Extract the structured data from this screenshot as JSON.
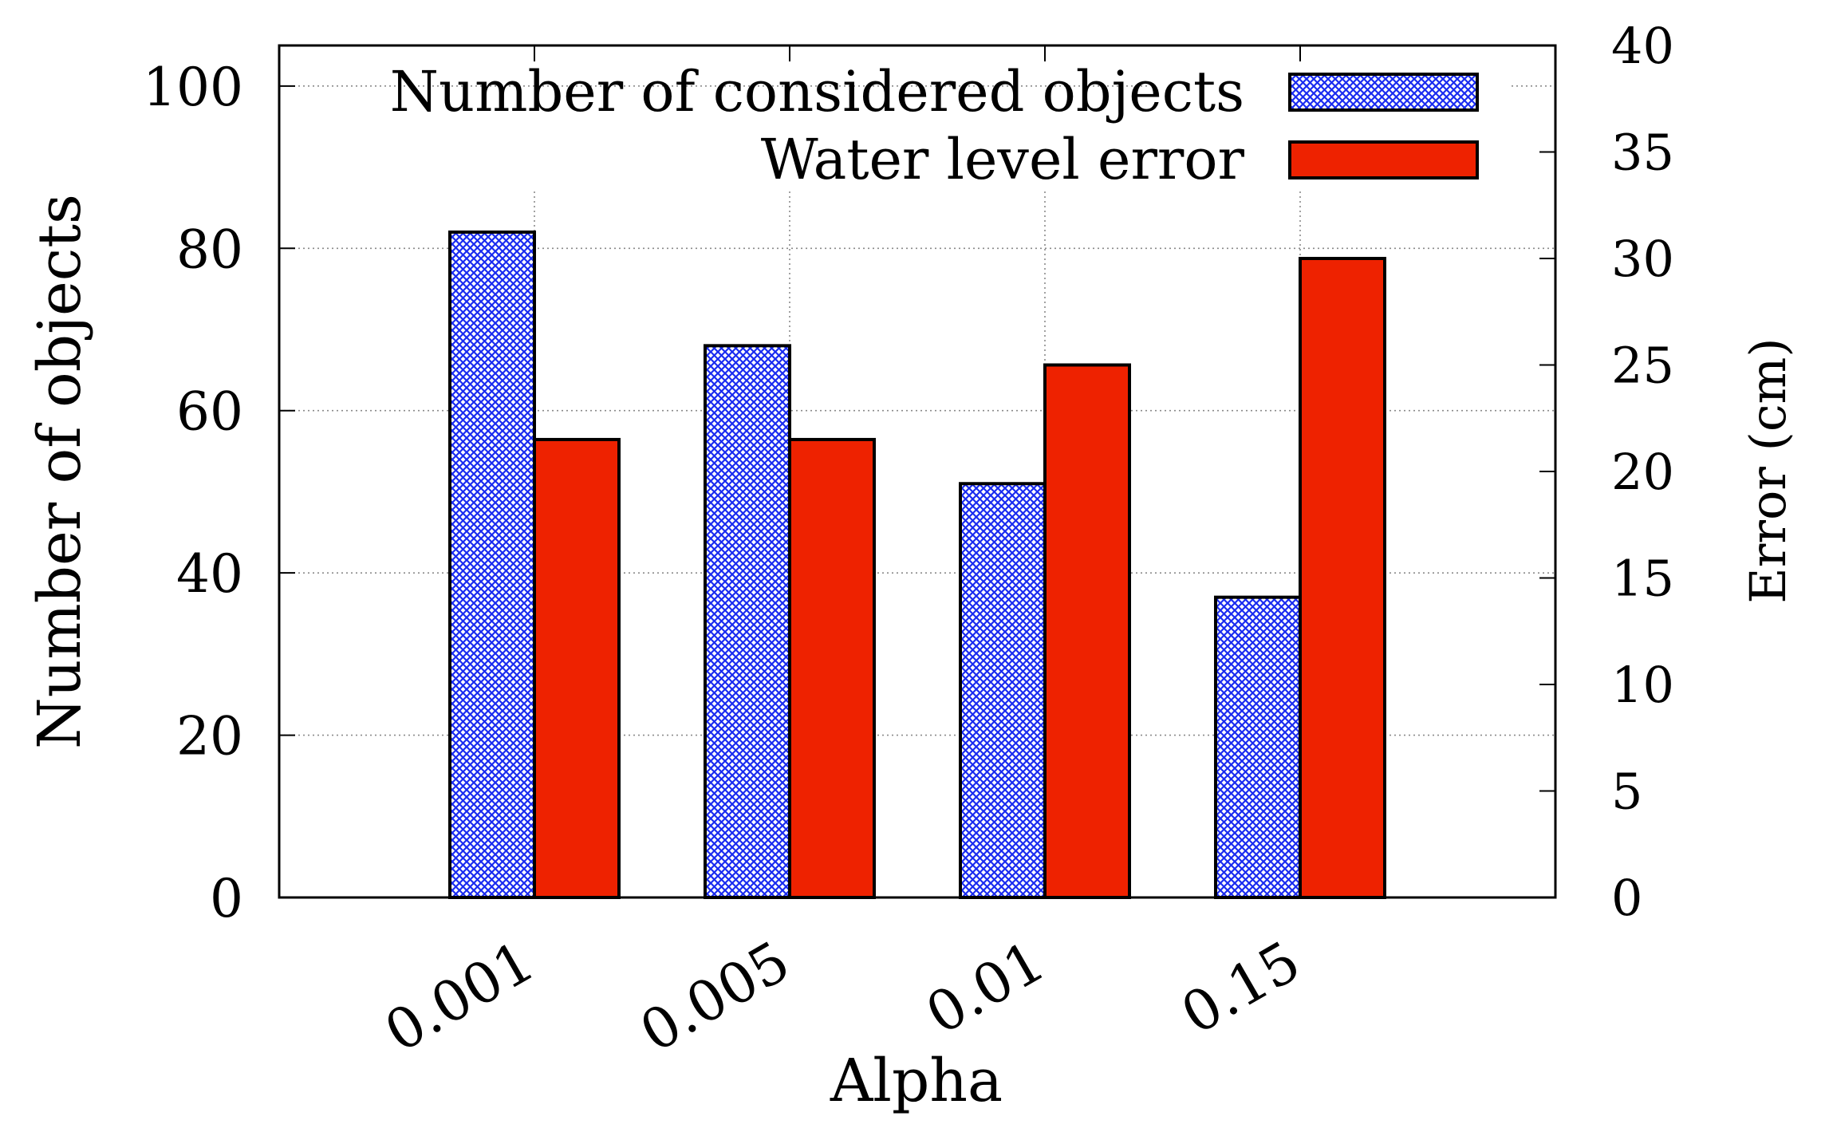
{
  "chart_data": {
    "type": "bar",
    "categories": [
      "0.001",
      "0.005",
      "0.01",
      "0.15"
    ],
    "series": [
      {
        "name": "Number of considered objects",
        "axis": "left",
        "values": [
          82,
          68,
          51,
          37
        ],
        "color": "#1a2cf0",
        "fill": "crosshatch"
      },
      {
        "name": "Water level error",
        "axis": "right",
        "values": [
          21.5,
          21.5,
          25,
          30
        ],
        "color": "#ee2200",
        "fill": "solid"
      }
    ],
    "xlabel": "Alpha",
    "ylabel": "Number of objects",
    "y2label": "Error (cm)",
    "ylim": [
      0,
      105
    ],
    "y2lim": [
      0,
      40
    ],
    "yticks": [
      "0",
      "20",
      "40",
      "60",
      "80",
      "100"
    ],
    "y2ticks": [
      "0",
      "5",
      "10",
      "15",
      "20",
      "25",
      "30",
      "35",
      "40"
    ],
    "grid": true,
    "legend_position": "top-right"
  }
}
